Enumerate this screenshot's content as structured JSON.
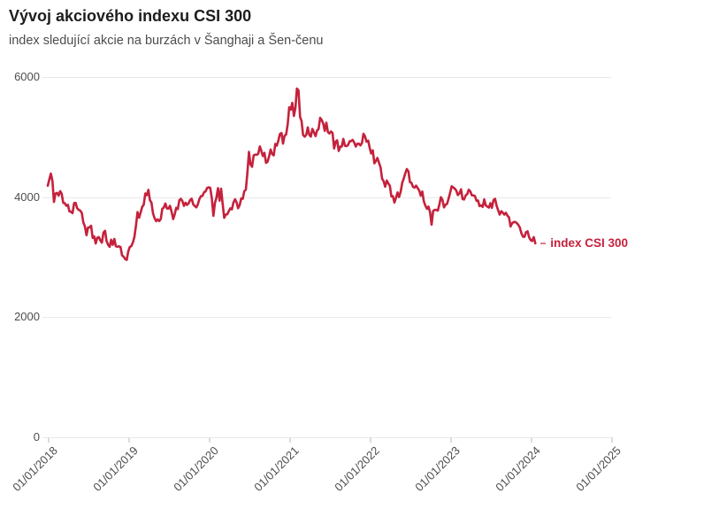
{
  "header": {
    "title": "Vývoj akciového indexu CSI 300",
    "subtitle": "index sledující akcie na burzách v Šanghaji a Šen-čenu"
  },
  "legend": {
    "label": "index CSI 300"
  },
  "colors": {
    "line": "#c5213c",
    "grid": "#e9e9e9",
    "tick": "#dcdcdc",
    "axis_text": "#4d4d4d",
    "title_text": "#1d1d1d",
    "subtitle_text": "#4c4c4c",
    "background": "#ffffff"
  },
  "chart_data": {
    "type": "line",
    "title": "Vývoj akciového indexu CSI 300",
    "subtitle": "index sledující akcie na burzách v Šanghaji a Šen-čenu",
    "xlabel": "",
    "ylabel": "",
    "grid": "horizontal-only",
    "legend_position": "inline-right-of-line-end",
    "ylim": [
      0,
      6000
    ],
    "y_ticks": [
      0,
      2000,
      4000,
      6000
    ],
    "xlim_years": [
      2018,
      2025
    ],
    "x_tick_years": [
      2018,
      2019,
      2020,
      2021,
      2022,
      2023,
      2024,
      2025
    ],
    "x_tick_labels": [
      "01/01/2018",
      "01/01/2019",
      "01/01/2020",
      "01/01/2021",
      "01/01/2022",
      "01/01/2023",
      "01/01/2024",
      "01/01/2025"
    ],
    "series": [
      {
        "name": "index CSI 300",
        "color": "#c5213c",
        "cadence": "weekly",
        "start_year": 2018,
        "points_per_year": 52,
        "values": [
          4190,
          4290,
          4392,
          4270,
          3920,
          4058,
          4071,
          4024,
          4100,
          4058,
          3905,
          3898,
          3855,
          3871,
          3761,
          3757,
          3732,
          3900,
          3903,
          3817,
          3787,
          3775,
          3735,
          3580,
          3511,
          3365,
          3493,
          3494,
          3523,
          3320,
          3347,
          3229,
          3325,
          3334,
          3277,
          3242,
          3410,
          3439,
          3268,
          3205,
          3173,
          3290,
          3205,
          3303,
          3181,
          3172,
          3180,
          3168,
          3029,
          3010,
          2969,
          2954,
          3095,
          3168,
          3184,
          3247,
          3338,
          3520,
          3750,
          3657,
          3743,
          3834,
          3872,
          4062,
          4032,
          4120,
          3948,
          3913,
          3730,
          3648,
          3600,
          3630,
          3600,
          3635,
          3807,
          3826,
          3894,
          3809,
          3808,
          3855,
          3758,
          3634,
          3711,
          3821,
          3799,
          3948,
          3972,
          3935,
          3853,
          3907,
          3870,
          3897,
          3952,
          3973,
          3878,
          3850,
          3828,
          3881,
          3968,
          4017,
          4022,
          4081,
          4097,
          4155,
          4163,
          4154,
          3980,
          3688,
          3900,
          3988,
          4150,
          3940,
          4139,
          3895,
          3654,
          3710,
          3714,
          3769,
          3813,
          3796,
          3913,
          3964,
          3913,
          3814,
          3867,
          3979,
          3972,
          4099,
          4125,
          4420,
          4753,
          4545,
          4505,
          4695,
          4707,
          4704,
          4722,
          4844,
          4770,
          4684,
          4737,
          4570,
          4588,
          4681,
          4792,
          4718,
          4695,
          4886,
          4857,
          4938,
          5050,
          5067,
          4892,
          5020,
          5043,
          5211,
          5495,
          5458,
          5570,
          5352,
          5484,
          5807,
          5779,
          5337,
          5263,
          5035,
          5007,
          5038,
          5161,
          5035,
          5008,
          5136,
          5078,
          5015,
          5110,
          5134,
          5321,
          5282,
          5224,
          5102,
          5240,
          5081,
          5060,
          5094,
          5068,
          4811,
          4921,
          4946,
          4769,
          4842,
          4843,
          4970,
          4856,
          4849,
          4866,
          4929,
          4932,
          4953,
          4909,
          4843,
          4889,
          4890,
          4860,
          4901,
          5055,
          5012,
          4922,
          4940,
          4822,
          4726,
          4779,
          4563,
          4601,
          4652,
          4573,
          4497,
          4307,
          4265,
          4174,
          4276,
          4230,
          4189,
          4013,
          4016,
          3909,
          3989,
          4077,
          4001,
          4090,
          4239,
          4309,
          4395,
          4467,
          4429,
          4248,
          4238,
          4170,
          4157,
          4191,
          4151,
          4108,
          4023,
          4093,
          3932,
          3856,
          3805,
          3842,
          3743,
          3541,
          3767,
          3788,
          3786,
          3775,
          3870,
          3998,
          3954,
          3828,
          3872,
          3887,
          3980,
          4074,
          4181,
          4160,
          4141,
          4106,
          4034,
          4061,
          4130,
          3967,
          3959,
          4027,
          4050,
          4124,
          4092,
          4029,
          4029,
          4017,
          3937,
          3944,
          3850,
          3862,
          3837,
          3963,
          3864,
          3842,
          3825,
          3899,
          3821,
          3953,
          3972,
          3855,
          3784,
          3709,
          3765,
          3740,
          3708,
          3738,
          3690,
          3663,
          3511,
          3562,
          3584,
          3586,
          3568,
          3538,
          3496,
          3400,
          3342,
          3337,
          3414,
          3431,
          3329,
          3284,
          3270,
          3334,
          3230
        ]
      }
    ]
  }
}
